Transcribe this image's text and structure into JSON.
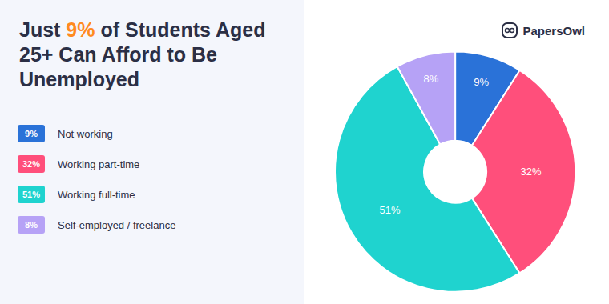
{
  "chart_data": {
    "type": "pie",
    "title": "Just 9% of Students Aged 25+ Can Afford to Be Unemployed",
    "categories": [
      "Not working",
      "Working part-time",
      "Working full-time",
      "Self-employed / freelance"
    ],
    "values": [
      9,
      32,
      51,
      8
    ],
    "value_labels": [
      "9%",
      "32%",
      "51%",
      "8%"
    ],
    "colors": [
      "#2a72d8",
      "#ff4f7b",
      "#1fd3cf",
      "#b6a2f6"
    ],
    "data_labels": true,
    "legend": "left",
    "annotations": [
      "PapersOwl"
    ]
  }
}
